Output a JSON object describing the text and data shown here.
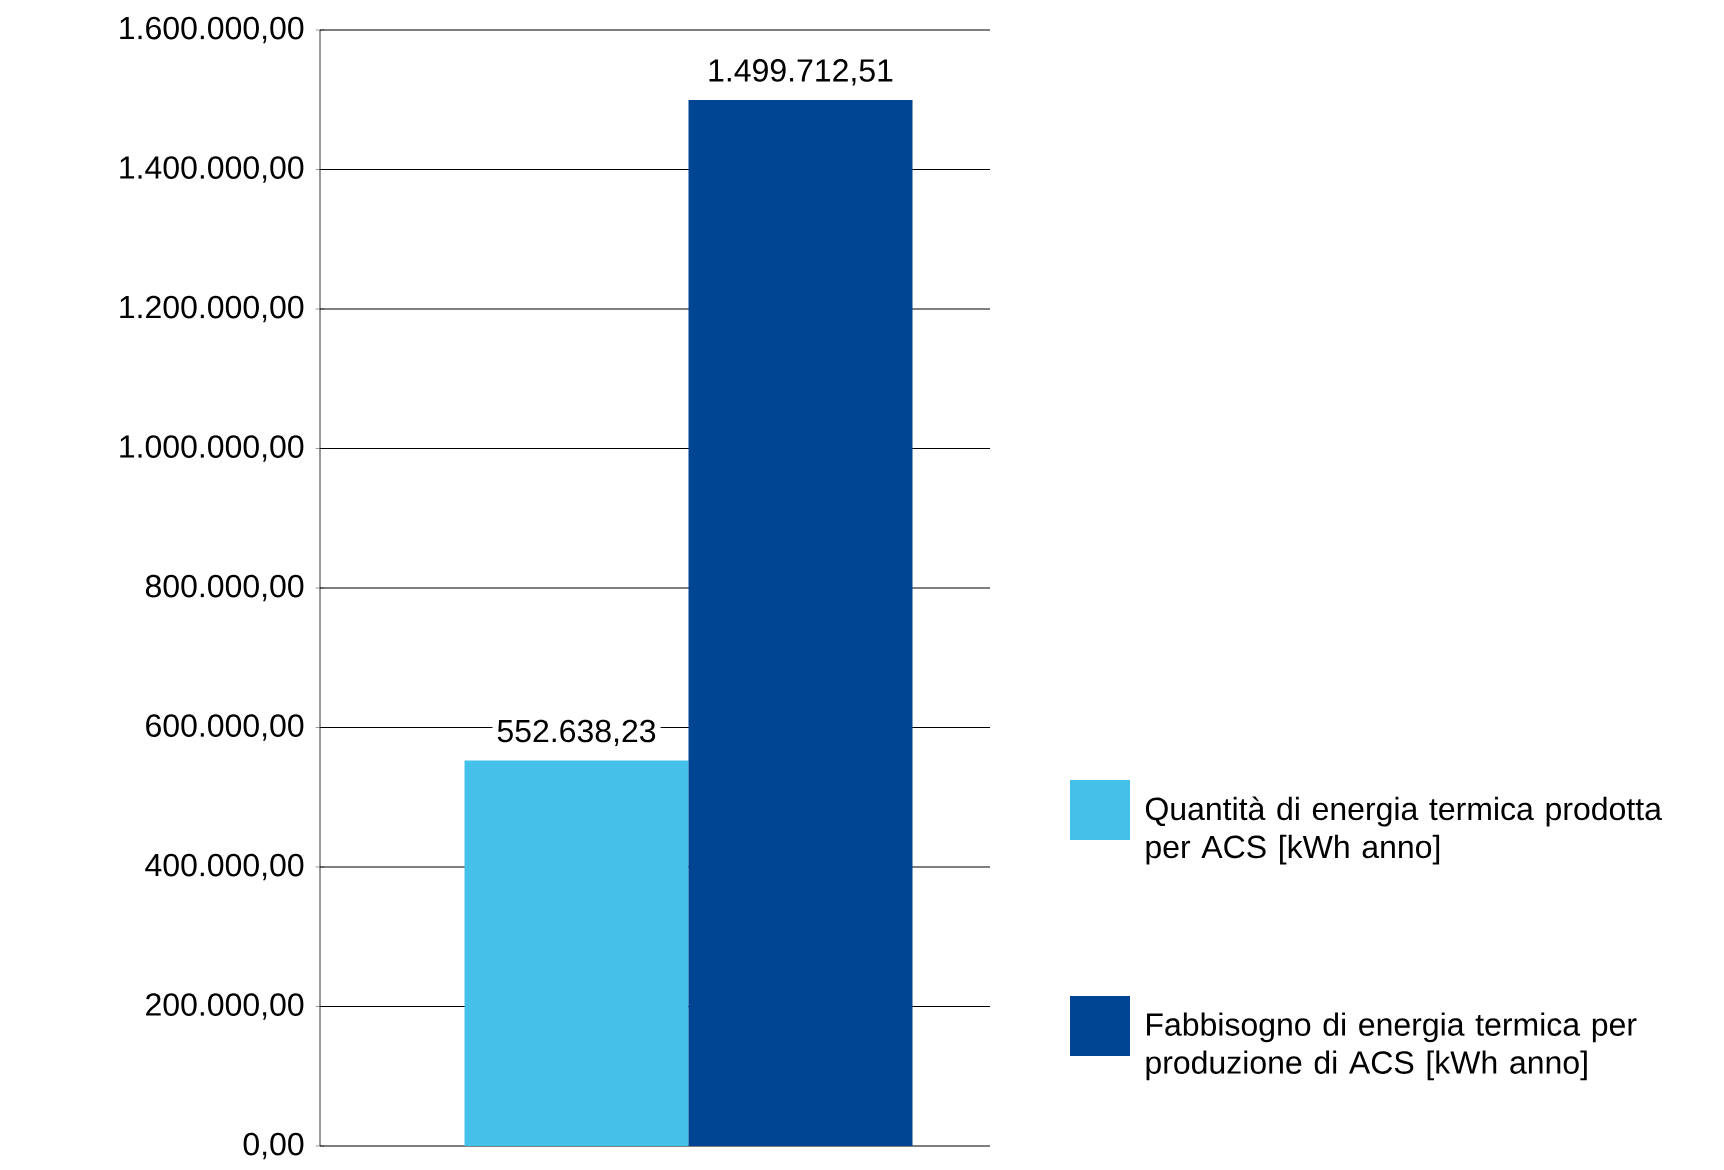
{
  "chart_data": {
    "type": "bar",
    "categories": [
      null
    ],
    "series": [
      {
        "name": "Quantità di energia termica prodotta per ACS [kWh anno]",
        "color": "#45c0e8",
        "values": [
          552638.23
        ],
        "value_labels": [
          "552.638,23"
        ]
      },
      {
        "name": "Fabbisogno di energia termica per produzione di ACS [kWh anno]",
        "color": "#004494",
        "values": [
          1499712.51
        ],
        "value_labels": [
          "1.499.712,51"
        ]
      }
    ],
    "ylim": [
      0,
      1600000
    ],
    "yticks": [
      {
        "value": 0,
        "label": "0,00"
      },
      {
        "value": 200000,
        "label": "200.000,00"
      },
      {
        "value": 400000,
        "label": "400.000,00"
      },
      {
        "value": 600000,
        "label": "600.000,00"
      },
      {
        "value": 800000,
        "label": "800.000,00"
      },
      {
        "value": 1000000,
        "label": "1.000.000,00"
      },
      {
        "value": 1200000,
        "label": "1.200.000,00"
      },
      {
        "value": 1400000,
        "label": "1.400.000,00"
      },
      {
        "value": 1600000,
        "label": "1.600.000,00"
      }
    ],
    "grid": "y",
    "legend": "right"
  }
}
